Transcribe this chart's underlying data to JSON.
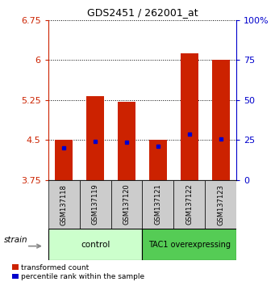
{
  "title": "GDS2451 / 262001_at",
  "samples": [
    "GSM137118",
    "GSM137119",
    "GSM137120",
    "GSM137121",
    "GSM137122",
    "GSM137123"
  ],
  "bar_bottoms": [
    3.75,
    3.75,
    3.75,
    3.75,
    3.75,
    3.75
  ],
  "bar_tops": [
    4.5,
    5.32,
    5.22,
    4.5,
    6.12,
    6.0
  ],
  "percentile_values": [
    4.35,
    4.47,
    4.46,
    4.38,
    4.62,
    4.52
  ],
  "ylim_left": [
    3.75,
    6.75
  ],
  "yticks_left": [
    3.75,
    4.5,
    5.25,
    6.0,
    6.75
  ],
  "ytick_labels_left": [
    "3.75",
    "4.5",
    "5.25",
    "6",
    "6.75"
  ],
  "yticks_right": [
    0,
    25,
    50,
    75,
    100
  ],
  "ytick_labels_right": [
    "0",
    "25",
    "50",
    "75",
    "100%"
  ],
  "bar_color": "#cc2200",
  "percentile_color": "#0000cc",
  "control_color": "#ccffcc",
  "tac1_color": "#55cc55",
  "sample_box_color": "#cccccc",
  "strain_label": "strain",
  "legend_red": "transformed count",
  "legend_blue": "percentile rank within the sample",
  "axis_left_color": "#cc2200",
  "axis_right_color": "#0000cc"
}
